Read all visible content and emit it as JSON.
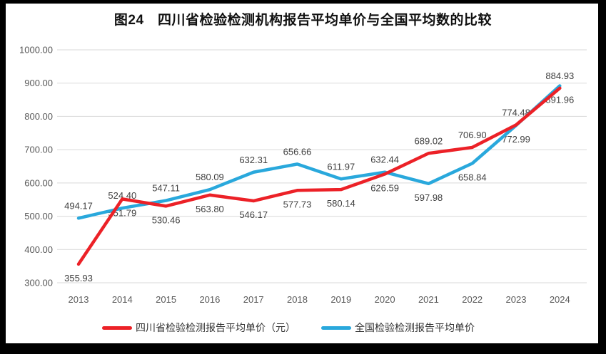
{
  "title": "图24　四川省检验检测机构报告平均单价与全国平均数的比较",
  "colors": {
    "sichuan": "#ec2127",
    "national": "#29a8dc",
    "grid": "#d9d9d9",
    "axis_text": "#595959",
    "label_text": "#404040",
    "frame": "#000000",
    "background": "#ffffff"
  },
  "chart_data": {
    "type": "line",
    "title": "图24　四川省检验检测机构报告平均单价与全国平均数的比较",
    "categories": [
      "2013",
      "2014",
      "2015",
      "2016",
      "2017",
      "2018",
      "2019",
      "2020",
      "2021",
      "2022",
      "2023",
      "2024"
    ],
    "series": [
      {
        "name": "四川省检验检测报告平均单价（元）",
        "color_key": "sichuan",
        "values": [
          355.93,
          551.79,
          530.46,
          563.8,
          546.17,
          577.73,
          580.14,
          626.59,
          689.02,
          706.9,
          774.48,
          884.93
        ],
        "label_placement": [
          "below",
          "below",
          "below",
          "below",
          "below",
          "below",
          "below",
          "below",
          "above",
          "above",
          "above",
          "above"
        ]
      },
      {
        "name": "全国检验检测报告平均单价",
        "color_key": "national",
        "values": [
          494.17,
          524.4,
          547.11,
          580.09,
          632.31,
          656.66,
          611.97,
          632.44,
          597.98,
          658.84,
          772.99,
          891.96
        ],
        "label_placement": [
          "above",
          "above",
          "above",
          "above",
          "above",
          "above",
          "above",
          "above",
          "below",
          "below",
          "below",
          "below"
        ]
      }
    ],
    "ylim": [
      300,
      1000
    ],
    "ytick_step": 100,
    "ytick_labels": [
      "1000.00",
      "900.00",
      "800.00",
      "700.00",
      "600.00",
      "500.00",
      "400.00",
      "300.00"
    ],
    "grid": true,
    "legend_position": "bottom",
    "value_label_decimals": 2
  }
}
